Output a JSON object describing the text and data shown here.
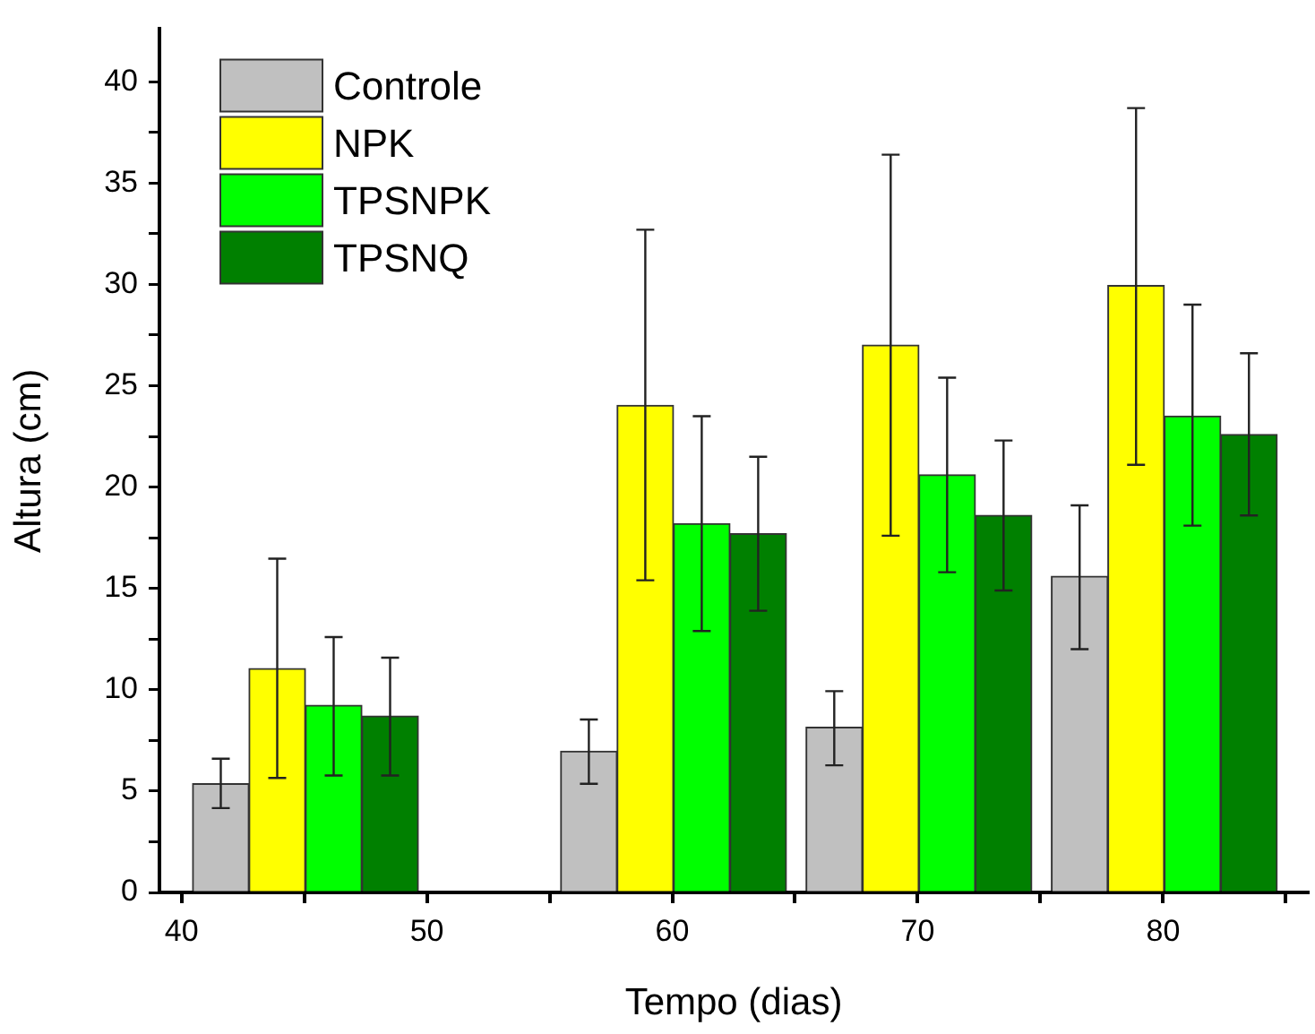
{
  "chart_data": {
    "type": "bar",
    "xlabel": "Tempo (dias)",
    "ylabel": "Altura (cm)",
    "xlim": [
      39.1,
      85.9
    ],
    "xticks": [
      40,
      {
        "value": 45,
        "label": null
      },
      50,
      {
        "value": 55,
        "label": null
      },
      60,
      {
        "value": 65,
        "label": null
      },
      70,
      {
        "value": 75,
        "label": null
      },
      80,
      {
        "value": 85,
        "label": null
      }
    ],
    "ylim": [
      0,
      42.6
    ],
    "yticks": [
      0,
      {
        "value": 2.5,
        "label": null
      },
      5,
      {
        "value": 7.5,
        "label": null
      },
      10,
      {
        "value": 12.5,
        "label": null
      },
      15,
      {
        "value": 17.5,
        "label": null
      },
      20,
      {
        "value": 22.5,
        "label": null
      },
      25,
      {
        "value": 27.5,
        "label": null
      },
      30,
      {
        "value": 32.5,
        "label": null
      },
      35,
      {
        "value": 37.5,
        "label": null
      },
      40
    ],
    "grid": false,
    "legend": "top left",
    "series": [
      {
        "name": "Controle",
        "color": "#c0c0c0",
        "x": [
          41.6,
          56.6,
          66.6,
          76.6
        ],
        "values": [
          5.36,
          6.97,
          8.15,
          15.6
        ],
        "errors": [
          [
            4.16,
            6.6
          ],
          [
            5.36,
            8.53
          ],
          [
            6.27,
            9.93
          ],
          [
            12.0,
            19.1
          ]
        ]
      },
      {
        "name": "NPK",
        "color": "#ffff00",
        "x": [
          43.9,
          58.9,
          68.9,
          78.9
        ],
        "values": [
          11.05,
          24.03,
          27.0,
          29.95
        ],
        "errors": [
          [
            5.65,
            16.47
          ],
          [
            15.4,
            32.7
          ],
          [
            17.6,
            36.4
          ],
          [
            21.1,
            38.7
          ]
        ]
      },
      {
        "name": "TPSNPK",
        "color": "#00ff00",
        "x": [
          46.2,
          61.2,
          71.2,
          81.2
        ],
        "values": [
          9.23,
          18.2,
          20.6,
          23.5
        ],
        "errors": [
          [
            5.77,
            12.6
          ],
          [
            12.9,
            23.5
          ],
          [
            15.8,
            25.4
          ],
          [
            18.1,
            29.0
          ]
        ]
      },
      {
        "name": "TPSNQ",
        "color": "#008000",
        "x": [
          48.5,
          63.5,
          73.5,
          83.5
        ],
        "values": [
          8.7,
          17.7,
          18.6,
          22.6
        ],
        "errors": [
          [
            5.77,
            11.58
          ],
          [
            13.9,
            21.5
          ],
          [
            14.9,
            22.3
          ],
          [
            18.6,
            26.6
          ]
        ]
      }
    ]
  }
}
